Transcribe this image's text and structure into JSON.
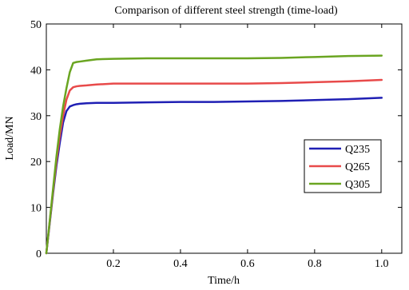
{
  "chart_data": {
    "type": "line",
    "title": "Comparison of different steel strength (time-load)",
    "xlabel": "Time/h",
    "ylabel": "Load/MN",
    "xlim": [
      0,
      1.06
    ],
    "ylim": [
      0,
      50
    ],
    "xticks": [
      0.2,
      0.4,
      0.6,
      0.8,
      1.0
    ],
    "xtick_labels": [
      "0.2",
      "0.4",
      "0.6",
      "0.8",
      "1.0"
    ],
    "yticks": [
      0,
      10,
      20,
      30,
      40,
      50
    ],
    "ytick_labels": [
      "0",
      "10",
      "20",
      "30",
      "40",
      "50"
    ],
    "grid": false,
    "legend_position": "right-middle",
    "series": [
      {
        "name": "Q235",
        "color": "#1f1fb4",
        "x": [
          0,
          0.01,
          0.02,
          0.03,
          0.04,
          0.05,
          0.06,
          0.07,
          0.08,
          0.09,
          0.1,
          0.12,
          0.15,
          0.2,
          0.3,
          0.4,
          0.5,
          0.6,
          0.7,
          0.8,
          0.9,
          1.0
        ],
        "y": [
          0,
          6.5,
          13,
          19,
          24,
          28.5,
          31,
          32,
          32.3,
          32.5,
          32.6,
          32.7,
          32.8,
          32.8,
          32.9,
          33.0,
          33.0,
          33.1,
          33.2,
          33.4,
          33.6,
          33.9
        ]
      },
      {
        "name": "Q265",
        "color": "#e84a4a",
        "x": [
          0,
          0.01,
          0.02,
          0.03,
          0.04,
          0.05,
          0.06,
          0.07,
          0.08,
          0.09,
          0.1,
          0.12,
          0.15,
          0.2,
          0.3,
          0.4,
          0.5,
          0.6,
          0.7,
          0.8,
          0.9,
          1.0
        ],
        "y": [
          0,
          6.8,
          13.5,
          20,
          25.5,
          30,
          33.5,
          35.5,
          36.2,
          36.4,
          36.5,
          36.6,
          36.8,
          37.0,
          37.0,
          37.0,
          37.0,
          37.0,
          37.1,
          37.3,
          37.5,
          37.8
        ]
      },
      {
        "name": "Q305",
        "color": "#6aa521",
        "x": [
          0,
          0.01,
          0.02,
          0.03,
          0.04,
          0.05,
          0.06,
          0.07,
          0.08,
          0.09,
          0.1,
          0.12,
          0.15,
          0.2,
          0.3,
          0.4,
          0.5,
          0.6,
          0.7,
          0.8,
          0.9,
          1.0
        ],
        "y": [
          0,
          7,
          14,
          21,
          27,
          32,
          36,
          39.5,
          41.5,
          41.7,
          41.8,
          42.0,
          42.3,
          42.4,
          42.5,
          42.5,
          42.5,
          42.5,
          42.6,
          42.8,
          43.0,
          43.1
        ]
      }
    ]
  }
}
